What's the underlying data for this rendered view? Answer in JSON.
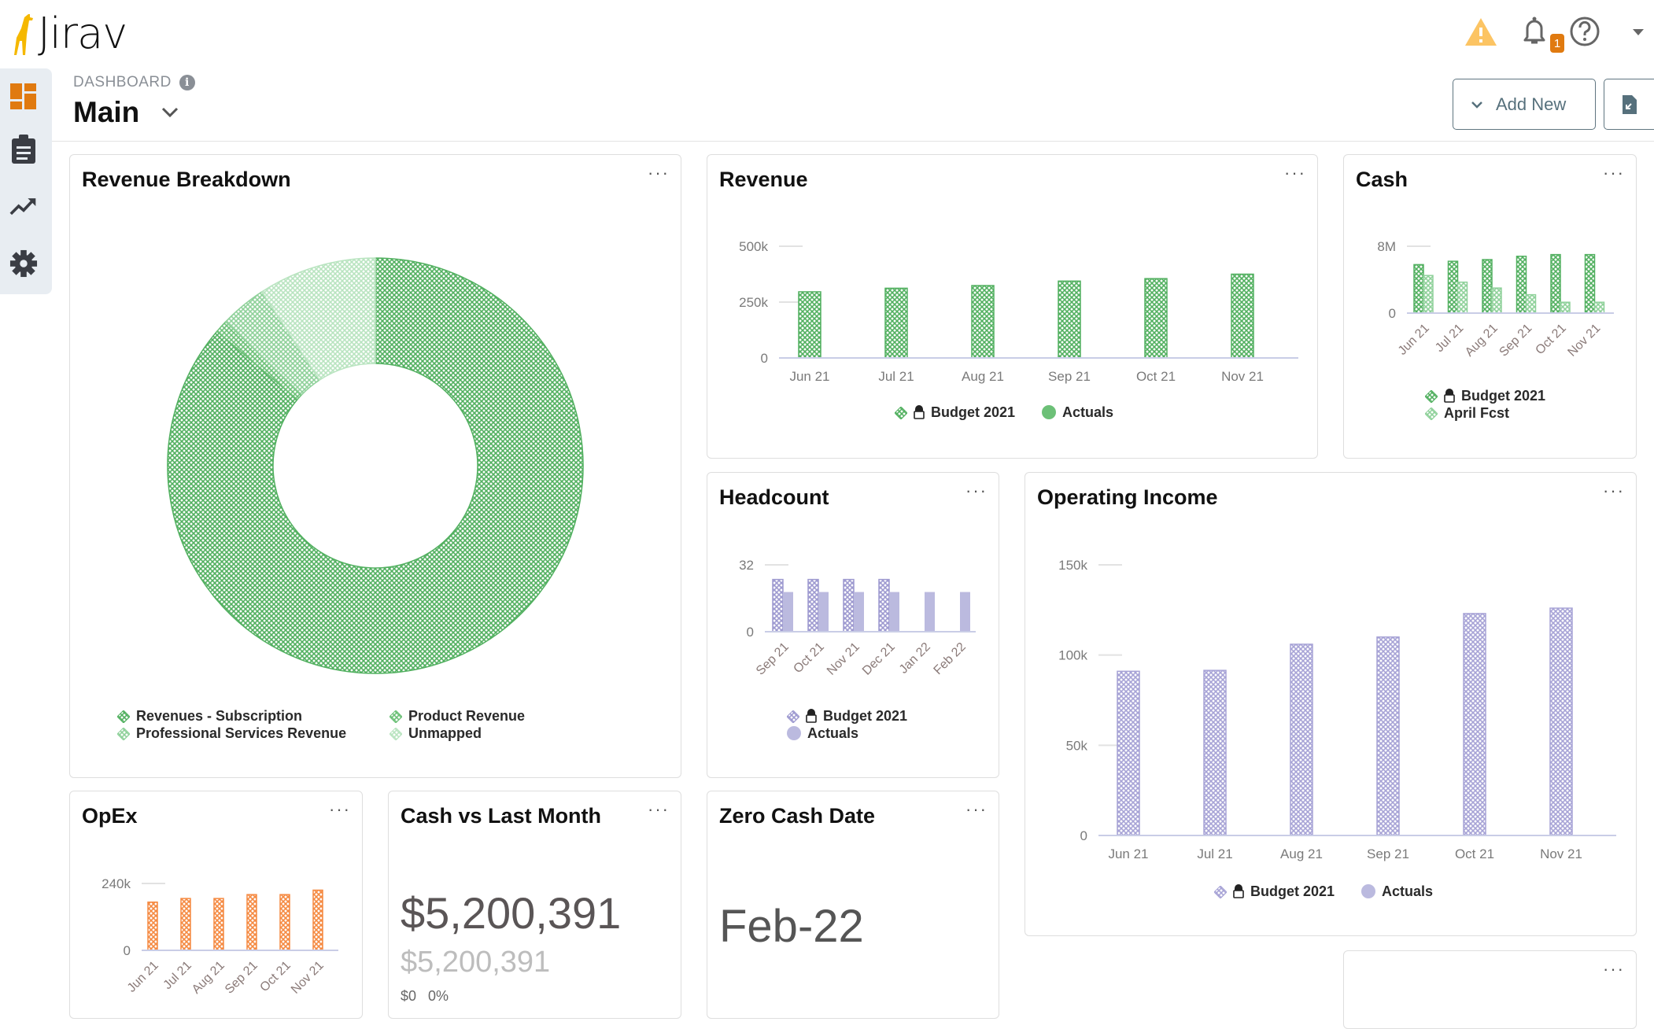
{
  "header": {
    "logo": "Jirav",
    "breadcrumb": "DASHBOARD",
    "title": "Main",
    "add_new_label": "Add New",
    "notification_count": "1"
  },
  "sidebar": {
    "items": [
      {
        "icon": "dashboard-icon",
        "active": true
      },
      {
        "icon": "clipboard-icon"
      },
      {
        "icon": "trend-chart-icon"
      },
      {
        "icon": "gear-icon"
      }
    ]
  },
  "colors": {
    "accent": "#e07a10",
    "green_dark": "#52b060",
    "green_mid": "#8fd19a",
    "green_light": "#b9e4c0",
    "purple": "#a7a3d6",
    "orange": "#f58a42"
  },
  "cards": {
    "revenue_breakdown": {
      "title": "Revenue Breakdown",
      "menu": "···"
    },
    "revenue": {
      "title": "Revenue",
      "menu": "···"
    },
    "cash": {
      "title": "Cash",
      "menu": "···"
    },
    "headcount": {
      "title": "Headcount",
      "menu": "···"
    },
    "operating_income": {
      "title": "Operating Income",
      "menu": "···"
    },
    "opex": {
      "title": "OpEx",
      "menu": "···"
    },
    "cash_vs_last_month": {
      "title": "Cash vs Last Month",
      "menu": "···",
      "value": "$5,200,391",
      "prior_value": "$5,200,391",
      "change": "$0   0%"
    },
    "zero_cash_date": {
      "title": "Zero Cash Date",
      "menu": "···",
      "value": "Feb-22"
    },
    "untitled": {
      "menu": "···"
    }
  },
  "chart_data": [
    {
      "id": "revenue_breakdown",
      "type": "pie",
      "donut": true,
      "slices": [
        {
          "name": "Revenues - Subscription",
          "value": 86.2,
          "color": "#52b060"
        },
        {
          "name": "Product Revenue",
          "value": 1.0,
          "color": "#6cc077"
        },
        {
          "name": "Professional Services Revenue",
          "value": 3.6,
          "color": "#8fd19a"
        },
        {
          "name": "Unmapped",
          "value": 9.2,
          "color": "#b9e4c0"
        }
      ]
    },
    {
      "id": "revenue",
      "type": "bar",
      "categories": [
        "Jun 21",
        "Jul 21",
        "Aug 21",
        "Sep 21",
        "Oct 21",
        "Nov 21"
      ],
      "ylim": [
        0,
        500000
      ],
      "yticks": [
        0,
        250000,
        500000
      ],
      "yticklabels": [
        "0",
        "250k",
        "500k"
      ],
      "series": [
        {
          "name": "Budget 2021",
          "locked": true,
          "pattern": true,
          "color": "#52b060",
          "values": [
            296000,
            312000,
            324000,
            344000,
            355000,
            375000
          ]
        },
        {
          "name": "Actuals",
          "color": "#6cc077",
          "values": [
            null,
            null,
            null,
            null,
            null,
            null
          ]
        }
      ]
    },
    {
      "id": "cash",
      "type": "bar",
      "categories": [
        "Jun 21",
        "Jul 21",
        "Aug 21",
        "Sep 21",
        "Oct 21",
        "Nov 21"
      ],
      "ylim": [
        0,
        8000000
      ],
      "yticks": [
        0,
        8000000
      ],
      "yticklabels": [
        "0",
        "8M"
      ],
      "series": [
        {
          "name": "Budget 2021",
          "locked": true,
          "pattern": true,
          "color": "#52b060",
          "values": [
            5800000,
            6200000,
            6400000,
            6800000,
            7000000,
            7000000
          ]
        },
        {
          "name": "April Fcst",
          "pattern": true,
          "color": "#8fd19a",
          "values": [
            4500000,
            3700000,
            3000000,
            2200000,
            1300000,
            1300000
          ]
        }
      ]
    },
    {
      "id": "headcount",
      "type": "bar",
      "categories": [
        "Sep 21",
        "Oct 21",
        "Nov 21",
        "Dec 21",
        "Jan 22",
        "Feb 22"
      ],
      "ylim": [
        0,
        32
      ],
      "yticks": [
        0,
        32
      ],
      "yticklabels": [
        "0",
        "32"
      ],
      "series": [
        {
          "name": "Budget 2021",
          "locked": true,
          "pattern": true,
          "color": "#9e9ad0",
          "values": [
            25,
            25,
            25,
            25,
            null,
            null
          ]
        },
        {
          "name": "Actuals",
          "color": "#bbbadf",
          "values": [
            19,
            19,
            19,
            19,
            19,
            19
          ]
        }
      ]
    },
    {
      "id": "opex",
      "type": "bar",
      "categories": [
        "Jun 21",
        "Jul 21",
        "Aug 21",
        "Sep 21",
        "Oct 21",
        "Nov 21"
      ],
      "ylim": [
        0,
        240000
      ],
      "yticks": [
        0,
        240000
      ],
      "yticklabels": [
        "0",
        "240k"
      ],
      "series": [
        {
          "pattern": true,
          "color": "#f58a42",
          "values": [
            173000,
            186000,
            186000,
            200000,
            200000,
            216000
          ]
        }
      ]
    },
    {
      "id": "operating_income",
      "type": "bar",
      "categories": [
        "Jun 21",
        "Jul 21",
        "Aug 21",
        "Sep 21",
        "Oct 21",
        "Nov 21"
      ],
      "ylim": [
        0,
        150000
      ],
      "yticks": [
        0,
        50000,
        100000,
        150000
      ],
      "yticklabels": [
        "0",
        "50k",
        "100k",
        "150k"
      ],
      "series": [
        {
          "name": "Budget 2021",
          "locked": true,
          "pattern": true,
          "color": "#a7a3d6",
          "values": [
            91000,
            91500,
            106000,
            110000,
            123000,
            126000
          ]
        },
        {
          "name": "Actuals",
          "color": "#bbbadf",
          "values": [
            null,
            null,
            null,
            null,
            null,
            null
          ]
        }
      ]
    }
  ]
}
